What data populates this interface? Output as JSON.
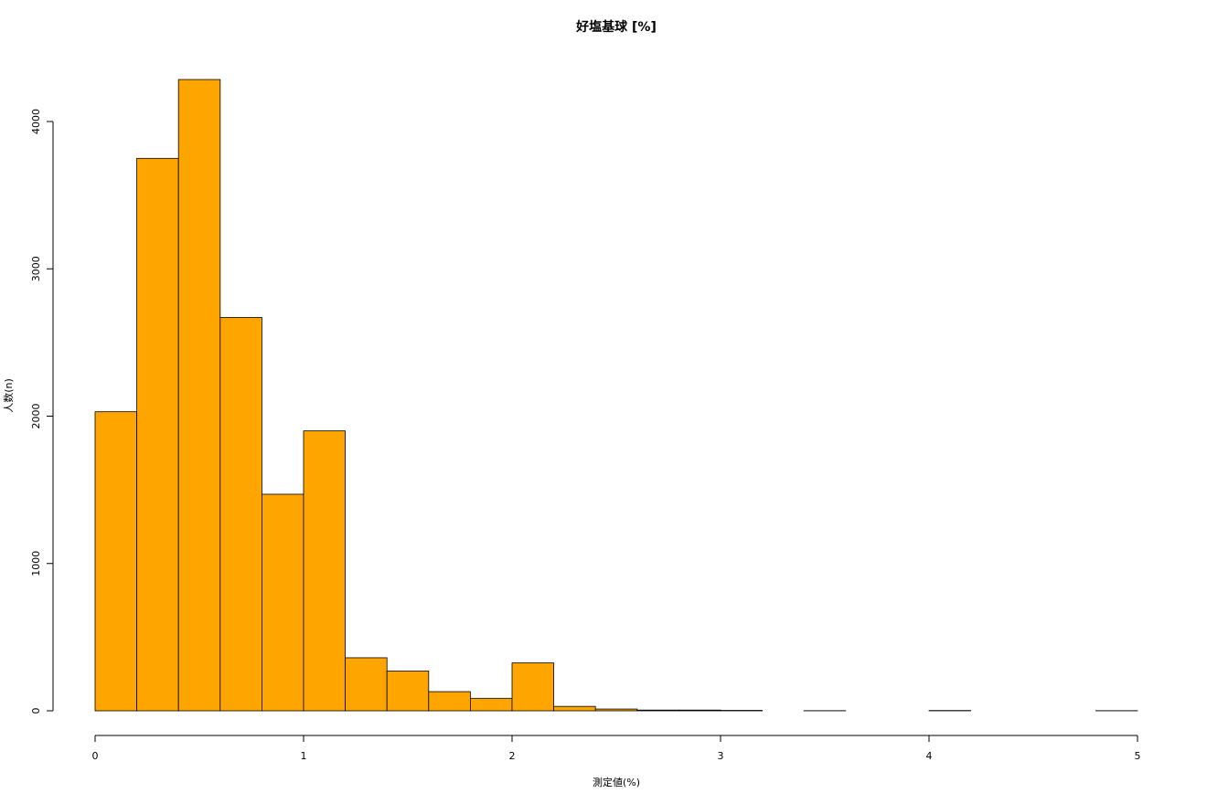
{
  "chart_data": {
    "type": "histogram",
    "title": "好塩基球 [%]",
    "x_label": "測定値(%)",
    "y_label": "人数(n)",
    "bins": [
      0,
      0.2,
      0.4,
      0.6,
      0.8,
      1,
      1.2,
      1.4,
      1.6,
      1.8,
      2,
      2.2,
      2.4,
      2.6,
      2.8,
      3,
      3.2,
      3.4,
      3.6,
      3.8,
      4,
      4.2,
      4.4,
      4.6,
      4.8,
      5
    ],
    "counts": [
      2030,
      3750,
      4285,
      2670,
      1470,
      1900,
      360,
      270,
      130,
      85,
      325,
      30,
      12,
      5,
      5,
      3,
      0,
      1,
      0,
      0,
      2,
      0,
      0,
      0,
      1
    ],
    "color": "#ffa500",
    "xlim": [
      0,
      5
    ],
    "xticks": [
      0,
      1,
      2,
      3,
      4,
      5
    ],
    "ylim": [
      0,
      4000
    ],
    "yticks": [
      0,
      1000,
      2000,
      3000,
      4000
    ]
  }
}
